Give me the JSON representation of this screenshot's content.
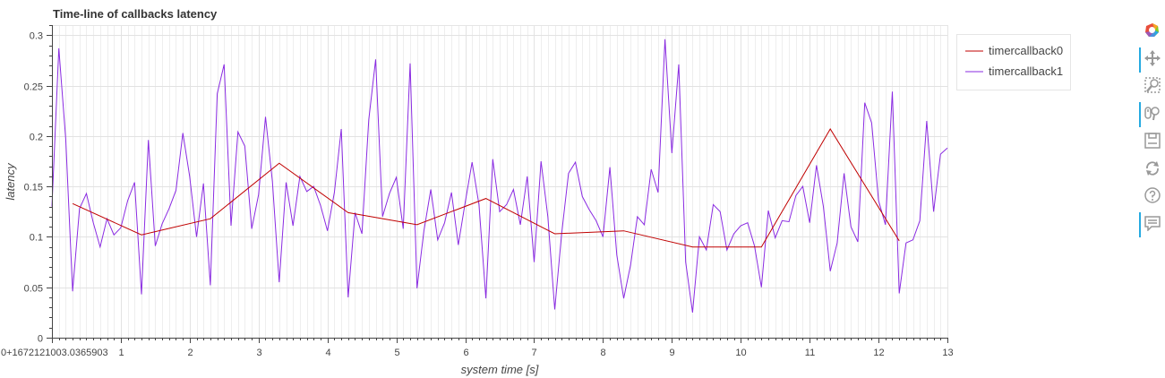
{
  "chart_data": {
    "type": "line",
    "title": "Time-line of callbacks latency",
    "xlabel": "system time [s]",
    "ylabel": "latency",
    "xlim": [
      0,
      13
    ],
    "ylim": [
      0,
      0.31
    ],
    "grid": true,
    "legend_position": "top-right",
    "x_ticks": [
      {
        "v": 0,
        "label": "0+1672121003.0365903"
      },
      {
        "v": 1,
        "label": "1"
      },
      {
        "v": 2,
        "label": "2"
      },
      {
        "v": 3,
        "label": "3"
      },
      {
        "v": 4,
        "label": "4"
      },
      {
        "v": 5,
        "label": "5"
      },
      {
        "v": 6,
        "label": "6"
      },
      {
        "v": 7,
        "label": "7"
      },
      {
        "v": 8,
        "label": "8"
      },
      {
        "v": 9,
        "label": "9"
      },
      {
        "v": 10,
        "label": "10"
      },
      {
        "v": 11,
        "label": "11"
      },
      {
        "v": 12,
        "label": "12"
      },
      {
        "v": 13,
        "label": "13"
      }
    ],
    "y_ticks": [
      {
        "v": 0,
        "label": "0"
      },
      {
        "v": 0.05,
        "label": "0.05"
      },
      {
        "v": 0.1,
        "label": "0.1"
      },
      {
        "v": 0.15,
        "label": "0.15"
      },
      {
        "v": 0.2,
        "label": "0.2"
      },
      {
        "v": 0.25,
        "label": "0.25"
      },
      {
        "v": 0.3,
        "label": "0.3"
      }
    ],
    "series": [
      {
        "name": "timercallback0",
        "color": "#c00000",
        "x": [
          0.3,
          1.3,
          2.3,
          3.3,
          4.3,
          5.3,
          6.3,
          7.3,
          8.3,
          9.3,
          10.3,
          11.3,
          12.3
        ],
        "y": [
          0.133,
          0.102,
          0.118,
          0.173,
          0.124,
          0.112,
          0.138,
          0.103,
          0.106,
          0.09,
          0.09,
          0.207,
          0.096
        ]
      },
      {
        "name": "timercallback1",
        "color": "#8a2be2",
        "x": [
          0.0,
          0.1,
          0.2,
          0.3,
          0.4,
          0.5,
          0.6,
          0.7,
          0.8,
          0.9,
          1.0,
          1.1,
          1.2,
          1.3,
          1.4,
          1.5,
          1.6,
          1.7,
          1.8,
          1.9,
          2.0,
          2.1,
          2.2,
          2.3,
          2.4,
          2.5,
          2.6,
          2.7,
          2.8,
          2.9,
          3.0,
          3.1,
          3.2,
          3.3,
          3.4,
          3.5,
          3.6,
          3.7,
          3.8,
          3.9,
          4.0,
          4.1,
          4.2,
          4.3,
          4.4,
          4.5,
          4.6,
          4.7,
          4.8,
          4.9,
          5.0,
          5.1,
          5.2,
          5.3,
          5.4,
          5.5,
          5.6,
          5.7,
          5.8,
          5.9,
          6.0,
          6.1,
          6.2,
          6.3,
          6.4,
          6.5,
          6.6,
          6.7,
          6.8,
          6.9,
          7.0,
          7.1,
          7.2,
          7.3,
          7.4,
          7.5,
          7.6,
          7.7,
          7.8,
          7.9,
          8.0,
          8.1,
          8.2,
          8.3,
          8.4,
          8.5,
          8.6,
          8.7,
          8.8,
          8.9,
          9.0,
          9.1,
          9.2,
          9.3,
          9.4,
          9.5,
          9.6,
          9.7,
          9.8,
          9.9,
          10.0,
          10.1,
          10.2,
          10.3,
          10.4,
          10.5,
          10.6,
          10.7,
          10.8,
          10.9,
          11.0,
          11.1,
          11.2,
          11.3,
          11.4,
          11.5,
          11.6,
          11.7,
          11.8,
          11.9,
          12.0,
          12.1,
          12.2,
          12.3,
          12.4,
          12.5,
          12.6,
          12.7,
          12.8,
          12.9,
          13.0
        ],
        "y": [
          0.13,
          0.287,
          0.197,
          0.046,
          0.128,
          0.143,
          0.114,
          0.09,
          0.118,
          0.102,
          0.109,
          0.136,
          0.154,
          0.043,
          0.196,
          0.091,
          0.113,
          0.128,
          0.146,
          0.203,
          0.16,
          0.1,
          0.153,
          0.052,
          0.242,
          0.271,
          0.111,
          0.204,
          0.19,
          0.108,
          0.142,
          0.219,
          0.155,
          0.055,
          0.154,
          0.111,
          0.16,
          0.145,
          0.15,
          0.131,
          0.106,
          0.144,
          0.207,
          0.04,
          0.124,
          0.103,
          0.216,
          0.276,
          0.12,
          0.143,
          0.159,
          0.108,
          0.272,
          0.049,
          0.106,
          0.147,
          0.097,
          0.114,
          0.144,
          0.092,
          0.134,
          0.174,
          0.132,
          0.039,
          0.177,
          0.125,
          0.132,
          0.147,
          0.112,
          0.16,
          0.075,
          0.175,
          0.12,
          0.028,
          0.103,
          0.163,
          0.174,
          0.14,
          0.127,
          0.116,
          0.1,
          0.169,
          0.082,
          0.039,
          0.072,
          0.12,
          0.112,
          0.167,
          0.144,
          0.296,
          0.183,
          0.271,
          0.075,
          0.025,
          0.1,
          0.087,
          0.132,
          0.125,
          0.087,
          0.103,
          0.111,
          0.114,
          0.091,
          0.05,
          0.126,
          0.099,
          0.116,
          0.115,
          0.141,
          0.15,
          0.114,
          0.171,
          0.13,
          0.066,
          0.094,
          0.163,
          0.11,
          0.095,
          0.233,
          0.213,
          0.136,
          0.112,
          0.244,
          0.044,
          0.094,
          0.097,
          0.116,
          0.215,
          0.125,
          0.182,
          0.188
        ]
      }
    ]
  },
  "toolbar": {
    "tools": [
      {
        "name": "bokeh-logo-icon",
        "active": false
      },
      {
        "name": "pan-tool-icon",
        "active": true
      },
      {
        "name": "box-zoom-tool-icon",
        "active": false
      },
      {
        "name": "wheel-zoom-tool-icon",
        "active": true
      },
      {
        "name": "save-tool-icon",
        "active": false
      },
      {
        "name": "reset-tool-icon",
        "active": false
      },
      {
        "name": "help-tool-icon",
        "active": false
      },
      {
        "name": "hover-tool-icon",
        "active": true
      }
    ]
  }
}
